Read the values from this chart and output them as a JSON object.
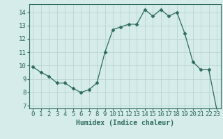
{
  "x": [
    0,
    1,
    2,
    3,
    4,
    5,
    6,
    7,
    8,
    9,
    10,
    11,
    12,
    13,
    14,
    15,
    16,
    17,
    18,
    19,
    20,
    21,
    22,
    23
  ],
  "y": [
    9.9,
    9.5,
    9.2,
    8.7,
    8.7,
    8.3,
    8.0,
    8.2,
    8.7,
    11.0,
    12.7,
    12.9,
    13.1,
    13.1,
    14.2,
    13.7,
    14.2,
    13.7,
    14.0,
    12.4,
    10.3,
    9.7,
    9.7,
    6.7
  ],
  "line_color": "#2e6b5e",
  "marker": "D",
  "marker_size": 2.5,
  "bg_color": "#d5ecea",
  "grid_color": "#b5d0ce",
  "xlabel": "Humidex (Indice chaleur)",
  "xlabel_fontsize": 7,
  "tick_fontsize": 6.5,
  "ylim": [
    6.8,
    14.6
  ],
  "yticks": [
    7,
    8,
    9,
    10,
    11,
    12,
    13,
    14
  ],
  "xlim": [
    -0.5,
    23.5
  ],
  "axis_color": "#2e6b5e"
}
